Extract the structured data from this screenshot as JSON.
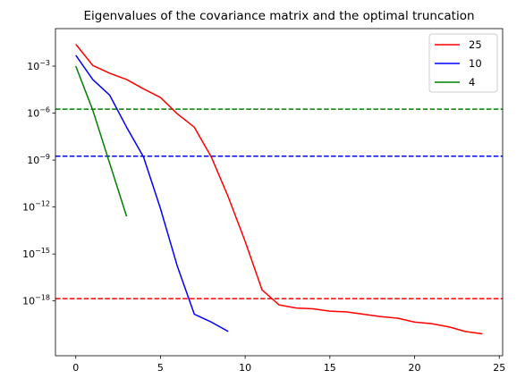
{
  "chart_data": {
    "type": "line",
    "title": "Eigenvalues of the covariance matrix and the optimal truncation",
    "xlabel": "",
    "ylabel": "",
    "yscale": "log",
    "xlim": [
      -1.2,
      25.2
    ],
    "ylim_log10": [
      -21.5,
      -0.6
    ],
    "xticks": [
      0,
      5,
      10,
      15,
      20,
      25
    ],
    "xtick_labels": [
      "0",
      "5",
      "10",
      "15",
      "20",
      "25"
    ],
    "yticks_log10": [
      -3,
      -6,
      -9,
      -12,
      -15,
      -18
    ],
    "ytick_labels": [
      {
        "base": "10",
        "exp": "−3"
      },
      {
        "base": "10",
        "exp": "−6"
      },
      {
        "base": "10",
        "exp": "−9"
      },
      {
        "base": "10",
        "exp": "−12"
      },
      {
        "base": "10",
        "exp": "−15"
      },
      {
        "base": "10",
        "exp": "−18"
      }
    ],
    "grid": false,
    "legend_position": "top-right",
    "series": [
      {
        "name": "25",
        "color": "#ff0000",
        "x": [
          0,
          1,
          2,
          3,
          4,
          5,
          6,
          7,
          8,
          9,
          10,
          11,
          12,
          13,
          14,
          15,
          16,
          17,
          18,
          19,
          20,
          21,
          22,
          23,
          24
        ],
        "log10_y": [
          -1.6,
          -2.95,
          -3.45,
          -3.85,
          -4.45,
          -5.0,
          -6.05,
          -6.9,
          -8.8,
          -11.35,
          -14.2,
          -17.3,
          -18.25,
          -18.45,
          -18.5,
          -18.65,
          -18.7,
          -18.85,
          -19.0,
          -19.1,
          -19.35,
          -19.45,
          -19.65,
          -19.95,
          -20.1
        ]
      },
      {
        "name": "10",
        "color": "#0000ff",
        "x": [
          0,
          1,
          2,
          3,
          4,
          5,
          6,
          7,
          8,
          9
        ],
        "log10_y": [
          -2.3,
          -3.85,
          -4.85,
          -6.9,
          -8.8,
          -12.1,
          -15.8,
          -18.85,
          -19.35,
          -19.95
        ]
      },
      {
        "name": "4",
        "color": "#008000",
        "x": [
          0,
          1,
          2,
          3
        ],
        "log10_y": [
          -3.0,
          -5.8,
          -9.2,
          -12.6
        ]
      }
    ],
    "hlines": [
      {
        "log10_y": -5.75,
        "color": "#008000",
        "style": "dashed"
      },
      {
        "log10_y": -8.75,
        "color": "#0000ff",
        "style": "dashed"
      },
      {
        "log10_y": -17.85,
        "color": "#ff0000",
        "style": "dashed"
      }
    ]
  }
}
